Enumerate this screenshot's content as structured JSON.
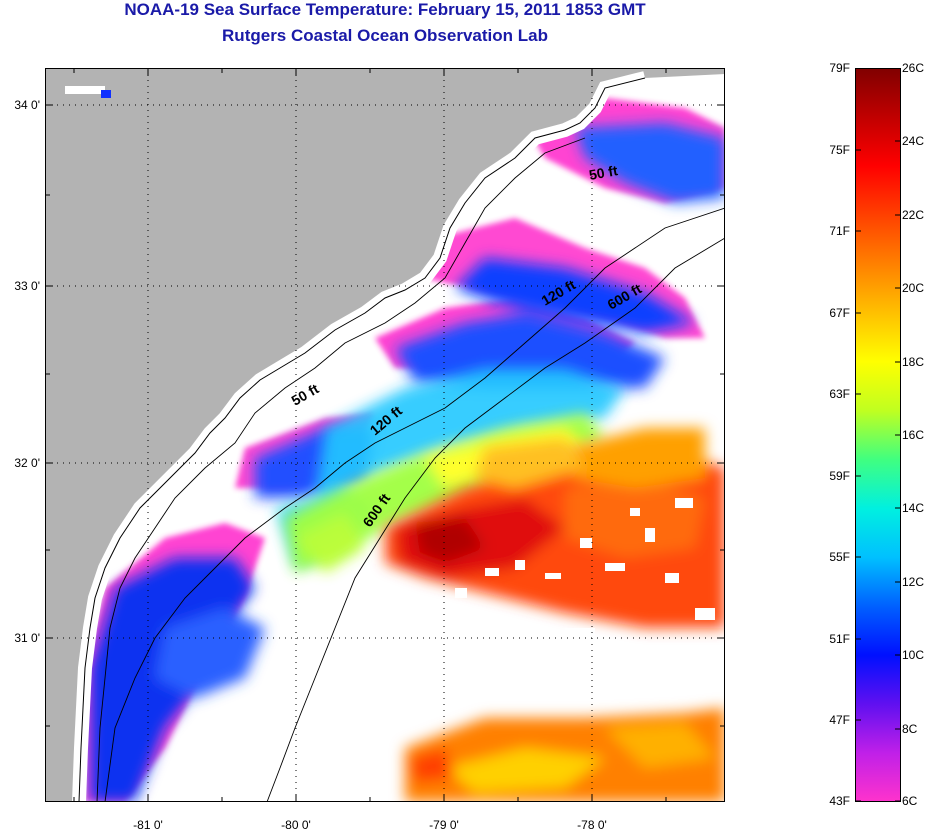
{
  "header": {
    "title": "NOAA-19 Sea Surface Temperature:  February 15, 2011 1853 GMT",
    "subtitle": "Rutgers Coastal Ocean Observation Lab"
  },
  "map": {
    "lat_ticks": [
      "34 0'",
      "33 0'",
      "32 0'",
      "31 0'"
    ],
    "lon_ticks": [
      "-81 0'",
      "-80 0'",
      "-79 0'",
      "-78 0'"
    ],
    "contour_labels": [
      "50 ft",
      "120 ft",
      "600 ft",
      "50 ft",
      "120 ft",
      "600 ft"
    ],
    "colors": {
      "land": "#b3b3b3",
      "cloud": "#ffffff",
      "coast": "#000000",
      "grid": "#000000"
    }
  },
  "colorbar": {
    "fahrenheit_labels": [
      "79F",
      "75F",
      "71F",
      "67F",
      "63F",
      "59F",
      "55F",
      "51F",
      "47F",
      "43F"
    ],
    "celsius_labels": [
      "26C",
      "24C",
      "22C",
      "20C",
      "18C",
      "16C",
      "14C",
      "12C",
      "10C",
      "8C",
      "6C"
    ],
    "stops": [
      "#ff33cc",
      "#c020e8",
      "#6010f0",
      "#0010ff",
      "#0060ff",
      "#00c0ff",
      "#00f0e0",
      "#40ff80",
      "#c0ff20",
      "#ffff00",
      "#ffc000",
      "#ff8000",
      "#ff4000",
      "#ff0000",
      "#c00000",
      "#800000"
    ]
  }
}
